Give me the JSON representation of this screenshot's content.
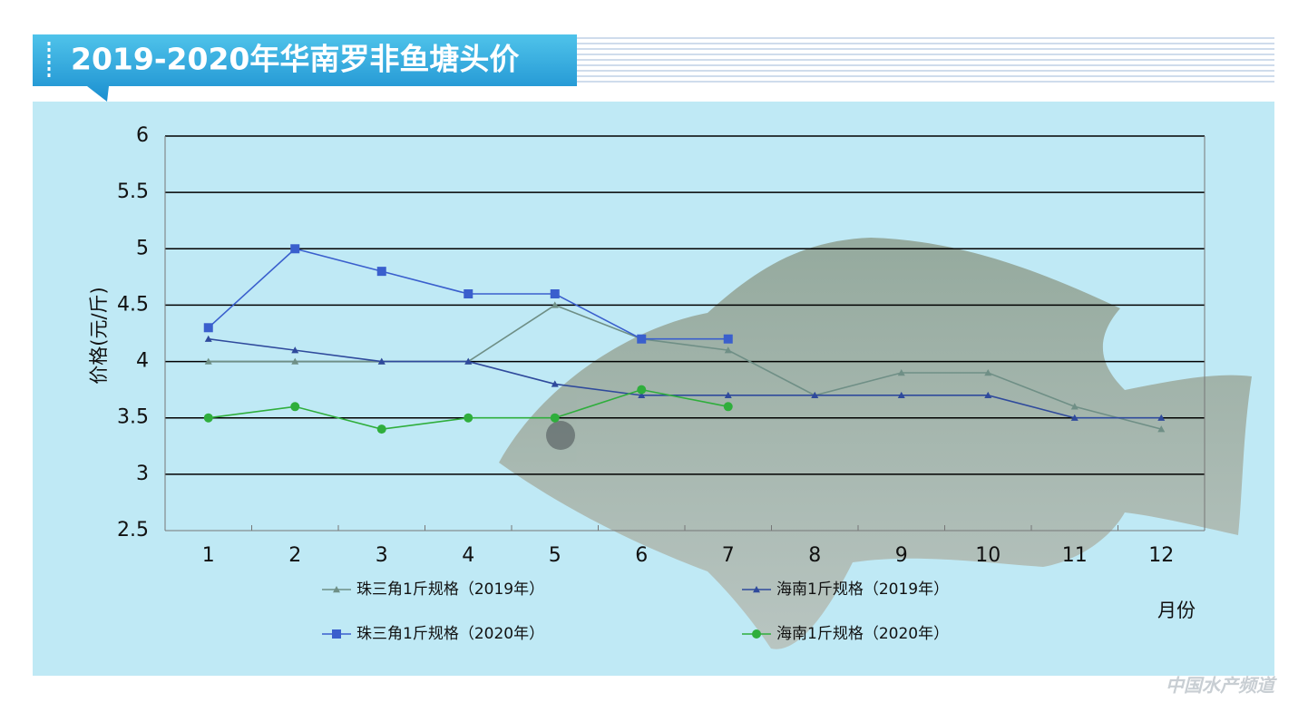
{
  "chart_data": {
    "type": "line",
    "title": "2019-2020年华南罗非鱼塘头价",
    "y_label": "价格(元/斤)",
    "x_label": "月份",
    "watermark": "中国水产频道",
    "categories": [
      "1",
      "2",
      "3",
      "4",
      "5",
      "6",
      "7",
      "8",
      "9",
      "10",
      "11",
      "12"
    ],
    "series": [
      {
        "name": "珠三角1斤规格（2019年）",
        "color": "#6f8f86",
        "marker": "triangle",
        "values": [
          4,
          4,
          4,
          4,
          4.5,
          4.2,
          4.1,
          3.7,
          3.9,
          3.9,
          3.6,
          3.4
        ]
      },
      {
        "name": "海南1斤规格（2019年）",
        "color": "#2f4a9c",
        "marker": "triangle",
        "values": [
          4.2,
          4.1,
          4,
          4,
          3.8,
          3.7,
          3.7,
          3.7,
          3.7,
          3.7,
          3.5,
          3.5
        ]
      },
      {
        "name": "珠三角1斤规格（2020年）",
        "color": "#3a5fcd",
        "marker": "square",
        "values": [
          4.3,
          5,
          4.8,
          4.6,
          4.6,
          4.2,
          4.2,
          null,
          null,
          null,
          null,
          null
        ]
      },
      {
        "name": "海南1斤规格（2020年）",
        "color": "#2fae3c",
        "marker": "circle",
        "values": [
          3.5,
          3.6,
          3.4,
          3.5,
          3.5,
          3.75,
          3.6,
          null,
          null,
          null,
          null,
          null
        ]
      }
    ],
    "ylim": [
      2.5,
      6
    ],
    "yticks": [
      2.5,
      3,
      3.5,
      4,
      4.5,
      5,
      5.5,
      6
    ],
    "grid": true
  }
}
